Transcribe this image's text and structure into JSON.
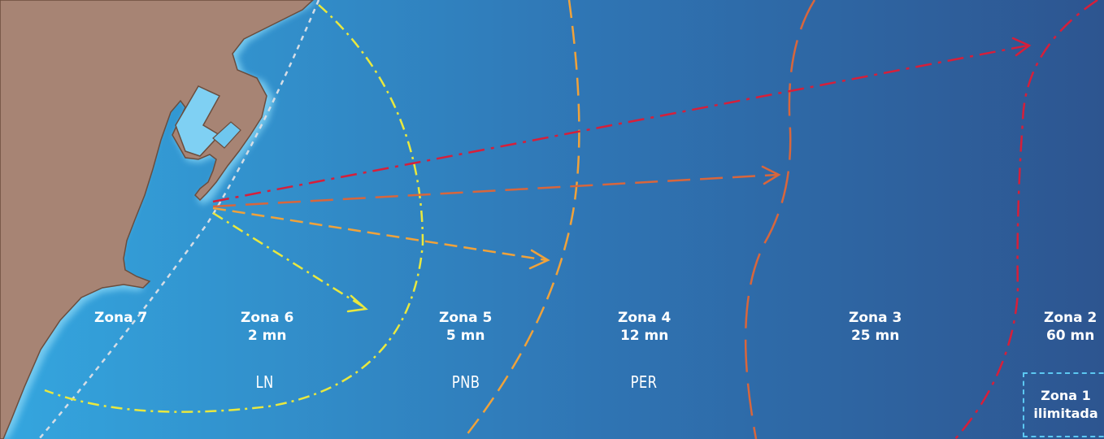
{
  "zones": [
    {
      "id": "zona7",
      "name": "Zona 7",
      "distance": ""
    },
    {
      "id": "zona6",
      "name": "Zona 6",
      "distance": "2 mn"
    },
    {
      "id": "zona5",
      "name": "Zona 5",
      "distance": "5 mn"
    },
    {
      "id": "zona4",
      "name": "Zona 4",
      "distance": "12 mn"
    },
    {
      "id": "zona3",
      "name": "Zona 3",
      "distance": "25 mn"
    },
    {
      "id": "zona2",
      "name": "Zona 2",
      "distance": "60 mn"
    },
    {
      "id": "zona1",
      "name": "Zona 1",
      "distance": "ilimitada"
    }
  ],
  "licenses": {
    "ln": "LN",
    "pnb": "PNB",
    "per": "PER"
  },
  "colors": {
    "sea_near": "#34a6df",
    "sea_far": "#2d5590",
    "land": "#a78474",
    "shore_glow": "#7fd0f3",
    "zone6_line": "#e9e83e",
    "zone5_line": "#f0a23a",
    "zone3_line": "#d8663c",
    "zone2_line": "#d61f3a",
    "zone7_line": "#d5dde6",
    "zone1_box": "#5cc8f2"
  }
}
